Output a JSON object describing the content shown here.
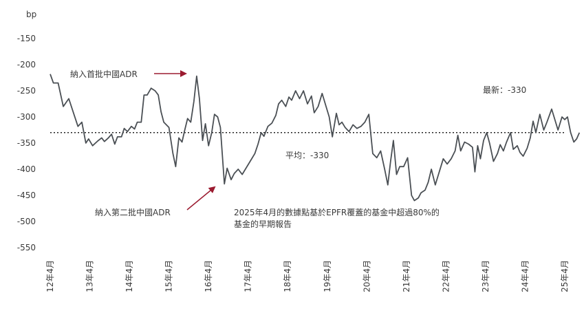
{
  "chart_data": {
    "type": "line",
    "ylabel": "bp",
    "ylim": [
      -570,
      -120
    ],
    "y_ticks": [
      -150,
      -200,
      -250,
      -300,
      -350,
      -400,
      -450,
      -500,
      -550
    ],
    "x_ticks": [
      "12年4月",
      "13年4月",
      "14年4月",
      "15年4月",
      "16年4月",
      "17年4月",
      "18年4月",
      "19年4月",
      "20年4月",
      "21年4月",
      "22年4月",
      "23年4月",
      "24年4月",
      "25年4月"
    ],
    "xlim": [
      2012.25,
      2025.25
    ],
    "grid": false,
    "series": [
      {
        "values": [
          [
            2012.25,
            -218
          ],
          [
            2012.33,
            -235
          ],
          [
            2012.45,
            -235
          ],
          [
            2012.58,
            -280
          ],
          [
            2012.72,
            -265
          ],
          [
            2012.85,
            -295
          ],
          [
            2012.95,
            -318
          ],
          [
            2013.05,
            -310
          ],
          [
            2013.15,
            -350
          ],
          [
            2013.22,
            -342
          ],
          [
            2013.32,
            -355
          ],
          [
            2013.45,
            -346
          ],
          [
            2013.55,
            -340
          ],
          [
            2013.62,
            -347
          ],
          [
            2013.72,
            -340
          ],
          [
            2013.8,
            -333
          ],
          [
            2013.88,
            -352
          ],
          [
            2013.95,
            -338
          ],
          [
            2014.05,
            -338
          ],
          [
            2014.12,
            -322
          ],
          [
            2014.2,
            -328
          ],
          [
            2014.3,
            -318
          ],
          [
            2014.38,
            -323
          ],
          [
            2014.45,
            -310
          ],
          [
            2014.55,
            -310
          ],
          [
            2014.62,
            -258
          ],
          [
            2014.7,
            -258
          ],
          [
            2014.8,
            -245
          ],
          [
            2014.9,
            -250
          ],
          [
            2014.98,
            -258
          ],
          [
            2015.05,
            -290
          ],
          [
            2015.12,
            -310
          ],
          [
            2015.25,
            -320
          ],
          [
            2015.35,
            -370
          ],
          [
            2015.42,
            -395
          ],
          [
            2015.5,
            -340
          ],
          [
            2015.58,
            -348
          ],
          [
            2015.65,
            -325
          ],
          [
            2015.72,
            -303
          ],
          [
            2015.8,
            -310
          ],
          [
            2015.88,
            -270
          ],
          [
            2015.95,
            -222
          ],
          [
            2016.02,
            -265
          ],
          [
            2016.1,
            -345
          ],
          [
            2016.17,
            -313
          ],
          [
            2016.25,
            -355
          ],
          [
            2016.33,
            -330
          ],
          [
            2016.4,
            -295
          ],
          [
            2016.48,
            -300
          ],
          [
            2016.55,
            -320
          ],
          [
            2016.65,
            -428
          ],
          [
            2016.72,
            -398
          ],
          [
            2016.82,
            -420
          ],
          [
            2016.9,
            -408
          ],
          [
            2017.0,
            -400
          ],
          [
            2017.1,
            -410
          ],
          [
            2017.18,
            -400
          ],
          [
            2017.3,
            -385
          ],
          [
            2017.42,
            -370
          ],
          [
            2017.5,
            -352
          ],
          [
            2017.58,
            -330
          ],
          [
            2017.65,
            -337
          ],
          [
            2017.75,
            -318
          ],
          [
            2017.85,
            -312
          ],
          [
            2017.95,
            -297
          ],
          [
            2018.02,
            -275
          ],
          [
            2018.1,
            -268
          ],
          [
            2018.2,
            -280
          ],
          [
            2018.28,
            -262
          ],
          [
            2018.35,
            -268
          ],
          [
            2018.45,
            -250
          ],
          [
            2018.55,
            -265
          ],
          [
            2018.65,
            -250
          ],
          [
            2018.75,
            -275
          ],
          [
            2018.85,
            -260
          ],
          [
            2018.92,
            -292
          ],
          [
            2019.02,
            -280
          ],
          [
            2019.12,
            -255
          ],
          [
            2019.22,
            -280
          ],
          [
            2019.3,
            -300
          ],
          [
            2019.38,
            -338
          ],
          [
            2019.48,
            -293
          ],
          [
            2019.55,
            -315
          ],
          [
            2019.62,
            -310
          ],
          [
            2019.7,
            -320
          ],
          [
            2019.8,
            -328
          ],
          [
            2019.9,
            -315
          ],
          [
            2020.0,
            -322
          ],
          [
            2020.1,
            -318
          ],
          [
            2020.2,
            -310
          ],
          [
            2020.3,
            -295
          ],
          [
            2020.4,
            -370
          ],
          [
            2020.5,
            -378
          ],
          [
            2020.6,
            -365
          ],
          [
            2020.7,
            -400
          ],
          [
            2020.78,
            -430
          ],
          [
            2020.85,
            -385
          ],
          [
            2020.92,
            -345
          ],
          [
            2021.0,
            -410
          ],
          [
            2021.08,
            -395
          ],
          [
            2021.18,
            -395
          ],
          [
            2021.28,
            -378
          ],
          [
            2021.38,
            -450
          ],
          [
            2021.45,
            -460
          ],
          [
            2021.55,
            -455
          ],
          [
            2021.62,
            -445
          ],
          [
            2021.72,
            -440
          ],
          [
            2021.8,
            -425
          ],
          [
            2021.88,
            -400
          ],
          [
            2021.98,
            -430
          ],
          [
            2022.08,
            -405
          ],
          [
            2022.18,
            -380
          ],
          [
            2022.28,
            -390
          ],
          [
            2022.38,
            -380
          ],
          [
            2022.48,
            -365
          ],
          [
            2022.55,
            -335
          ],
          [
            2022.62,
            -365
          ],
          [
            2022.72,
            -348
          ],
          [
            2022.82,
            -352
          ],
          [
            2022.92,
            -358
          ],
          [
            2022.98,
            -405
          ],
          [
            2023.05,
            -355
          ],
          [
            2023.12,
            -380
          ],
          [
            2023.2,
            -345
          ],
          [
            2023.28,
            -330
          ],
          [
            2023.35,
            -350
          ],
          [
            2023.45,
            -385
          ],
          [
            2023.55,
            -370
          ],
          [
            2023.62,
            -353
          ],
          [
            2023.7,
            -365
          ],
          [
            2023.78,
            -348
          ],
          [
            2023.88,
            -330
          ],
          [
            2023.95,
            -362
          ],
          [
            2024.05,
            -355
          ],
          [
            2024.12,
            -368
          ],
          [
            2024.2,
            -375
          ],
          [
            2024.3,
            -360
          ],
          [
            2024.38,
            -340
          ],
          [
            2024.45,
            -308
          ],
          [
            2024.52,
            -330
          ],
          [
            2024.62,
            -295
          ],
          [
            2024.72,
            -325
          ],
          [
            2024.8,
            -310
          ],
          [
            2024.92,
            -285
          ],
          [
            2025.0,
            -305
          ],
          [
            2025.08,
            -325
          ],
          [
            2025.18,
            -300
          ],
          [
            2025.25,
            -305
          ],
          [
            2025.32,
            -300
          ],
          [
            2025.4,
            -330
          ],
          [
            2025.48,
            -348
          ],
          [
            2025.55,
            -342
          ],
          [
            2025.62,
            -330
          ]
        ]
      }
    ],
    "reference_line": {
      "value": -330,
      "label": "平均：-330"
    },
    "annotations": {
      "first_adr": "納入首批中國ADR",
      "second_adr": "納入第二批中國ADR",
      "latest": "最新：-330",
      "note_line1": "2025年4月的數據點基於EPFR覆蓋的基金中超過80%的",
      "note_line2": "基金的早期報告"
    },
    "colors": {
      "line": "#4a4f54",
      "arrow": "#9b1b30",
      "axis_text": "#3a3a3a"
    }
  }
}
